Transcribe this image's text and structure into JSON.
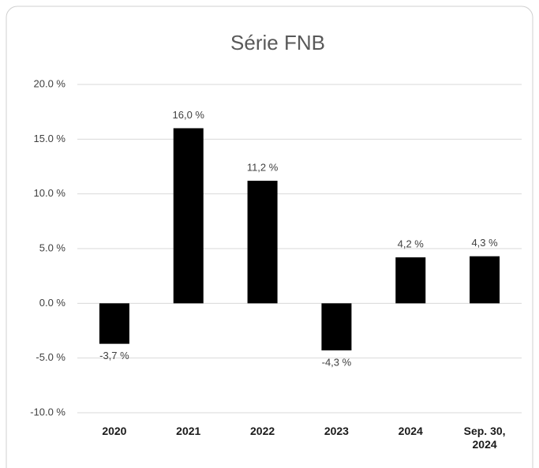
{
  "chart_data": {
    "type": "bar",
    "title": "Série FNB",
    "categories": [
      "2020",
      "2021",
      "2022",
      "2023",
      "2024",
      "Sep. 30, 2024"
    ],
    "values": [
      -3.7,
      16.0,
      11.2,
      -4.3,
      4.2,
      4.3
    ],
    "value_labels": [
      "-3,7 %",
      "16,0 %",
      "11,2 %",
      "-4,3 %",
      "4,2 %",
      "4,3 %"
    ],
    "color": "#000000",
    "ylim": [
      -10,
      20
    ],
    "yticks": [
      {
        "value": 20,
        "label": "20.0 %"
      },
      {
        "value": 15,
        "label": "15.0 %"
      },
      {
        "value": 10,
        "label": "10.0 %"
      },
      {
        "value": 5,
        "label": "5.0 %"
      },
      {
        "value": 0,
        "label": "0.0 %"
      },
      {
        "value": -5,
        "label": "-5.0 %"
      },
      {
        "value": -10,
        "label": "-10.0 %"
      }
    ],
    "grid": true
  }
}
